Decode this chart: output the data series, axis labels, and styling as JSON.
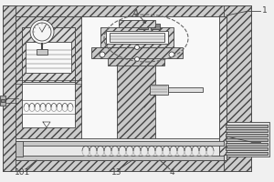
{
  "bg": "#f0f0f0",
  "lc": "#444444",
  "hatch_fc": "#cccccc",
  "white": "#f8f8f8",
  "lw": 0.6,
  "fs": 6.5,
  "fig_w": 3.0,
  "fig_h": 2.0,
  "dpi": 100
}
